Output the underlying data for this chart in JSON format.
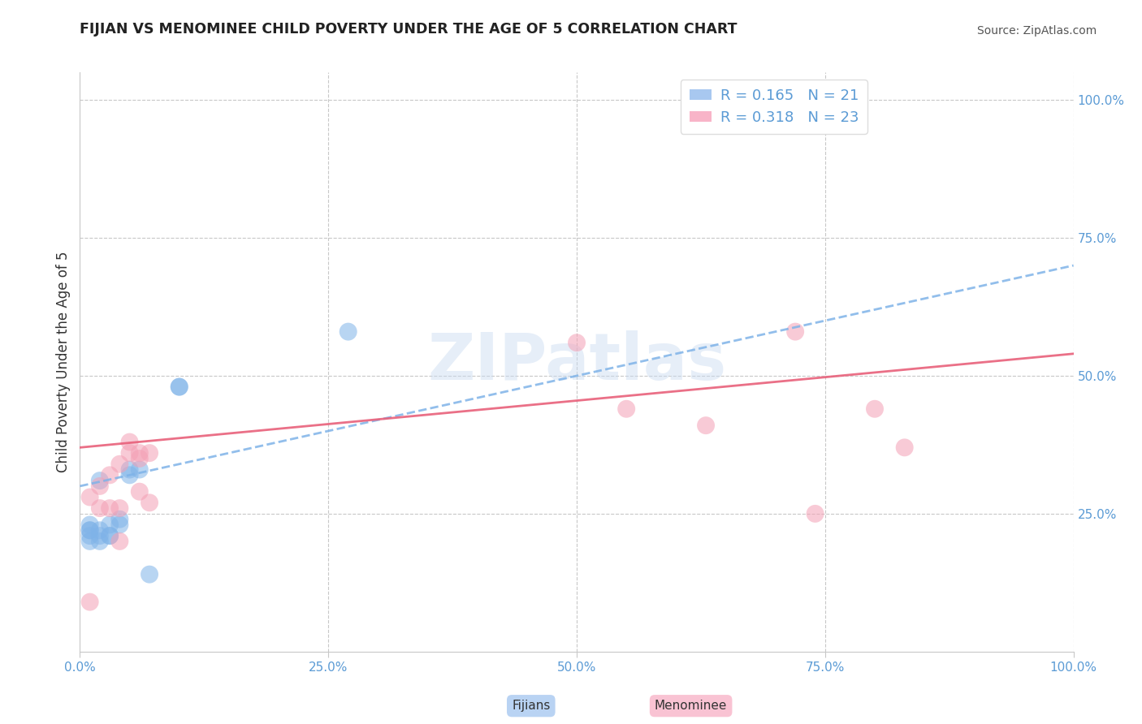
{
  "title": "FIJIAN VS MENOMINEE CHILD POVERTY UNDER THE AGE OF 5 CORRELATION CHART",
  "source": "Source: ZipAtlas.com",
  "ylabel": "Child Poverty Under the Age of 5",
  "fijian_color": "#7fb3e8",
  "menominee_color": "#f4a0b5",
  "fijian_line_color": "#7fb3e8",
  "menominee_line_color": "#e8607a",
  "fijian_r": "0.165",
  "fijian_n": "21",
  "menominee_r": "0.318",
  "menominee_n": "23",
  "watermark_text": "ZIPatlas",
  "fijian_scatter_x": [
    0.01,
    0.01,
    0.01,
    0.01,
    0.01,
    0.02,
    0.02,
    0.02,
    0.02,
    0.03,
    0.03,
    0.03,
    0.04,
    0.04,
    0.05,
    0.05,
    0.06,
    0.07,
    0.1,
    0.1,
    0.27
  ],
  "fijian_scatter_y": [
    0.2,
    0.21,
    0.22,
    0.22,
    0.23,
    0.2,
    0.21,
    0.22,
    0.31,
    0.21,
    0.21,
    0.23,
    0.23,
    0.24,
    0.32,
    0.33,
    0.33,
    0.14,
    0.48,
    0.48,
    0.58
  ],
  "menominee_scatter_x": [
    0.01,
    0.02,
    0.02,
    0.03,
    0.03,
    0.04,
    0.04,
    0.05,
    0.05,
    0.06,
    0.06,
    0.06,
    0.07,
    0.07,
    0.5,
    0.55,
    0.63,
    0.72,
    0.74,
    0.8,
    0.83,
    0.01,
    0.04
  ],
  "menominee_scatter_y": [
    0.28,
    0.3,
    0.26,
    0.32,
    0.26,
    0.34,
    0.26,
    0.38,
    0.36,
    0.29,
    0.35,
    0.36,
    0.27,
    0.36,
    0.56,
    0.44,
    0.41,
    0.58,
    0.25,
    0.44,
    0.37,
    0.09,
    0.2
  ],
  "fijian_trendline_x0": 0.0,
  "fijian_trendline_y0": 0.3,
  "fijian_trendline_x1": 1.0,
  "fijian_trendline_y1": 0.7,
  "menominee_trendline_x0": 0.0,
  "menominee_trendline_y0": 0.37,
  "menominee_trendline_x1": 1.0,
  "menominee_trendline_y1": 0.54,
  "grid_color": "#c8c8c8",
  "title_color": "#222222",
  "axis_tick_color": "#5b9bd5",
  "legend_fijian_color": "#a8c8f0",
  "legend_menominee_color": "#f8b4c8",
  "xtick_positions": [
    0.0,
    0.25,
    0.5,
    0.75,
    1.0
  ],
  "xtick_labels": [
    "0.0%",
    "25.0%",
    "50.0%",
    "75.0%",
    "100.0%"
  ],
  "ytick_positions": [
    0.25,
    0.5,
    0.75,
    1.0
  ],
  "ytick_labels": [
    "25.0%",
    "50.0%",
    "75.0%",
    "100.0%"
  ]
}
